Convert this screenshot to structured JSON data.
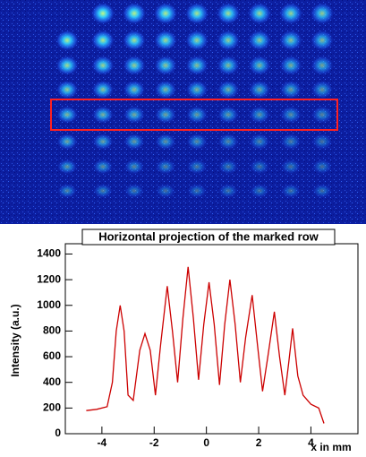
{
  "chart_data": {
    "type": "line",
    "title": "Horizontal projection of the marked row",
    "y_label": "Intensity (a.u.)",
    "x_label": "x in mm",
    "x": [
      -4.6,
      -4.2,
      -3.8,
      -3.6,
      -3.45,
      -3.3,
      -3.15,
      -3.0,
      -2.8,
      -2.55,
      -2.35,
      -2.15,
      -1.95,
      -1.75,
      -1.5,
      -1.3,
      -1.1,
      -0.9,
      -0.7,
      -0.5,
      -0.3,
      -0.1,
      0.1,
      0.3,
      0.5,
      0.7,
      0.9,
      1.1,
      1.3,
      1.5,
      1.75,
      1.95,
      2.15,
      2.35,
      2.6,
      2.8,
      3.0,
      3.15,
      3.3,
      3.5,
      3.7,
      4.0,
      4.3,
      4.5
    ],
    "values": [
      180,
      190,
      210,
      400,
      800,
      1000,
      800,
      300,
      260,
      650,
      780,
      650,
      300,
      700,
      1150,
      800,
      400,
      900,
      1300,
      900,
      420,
      850,
      1180,
      850,
      380,
      850,
      1200,
      850,
      400,
      750,
      1080,
      700,
      330,
      600,
      950,
      600,
      300,
      550,
      820,
      450,
      300,
      230,
      200,
      80
    ],
    "color": "#cc0000",
    "xlim": [
      -5.4,
      5.8
    ],
    "ylim": [
      0,
      1480
    ],
    "xticks": [
      -4,
      -2,
      0,
      2,
      4
    ],
    "yticks": [
      0,
      200,
      400,
      600,
      800,
      1000,
      1200,
      1400
    ]
  }
}
